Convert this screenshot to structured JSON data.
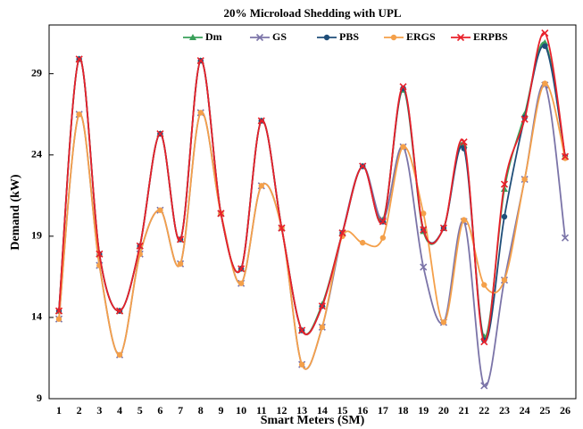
{
  "chart_data": {
    "type": "line",
    "title": "20% Microload Shedding with UPL",
    "x_label": "Smart Meters (SM)",
    "y_label": "Demand (kW)",
    "categories": [
      "1",
      "2",
      "3",
      "4",
      "5",
      "6",
      "7",
      "8",
      "9",
      "10",
      "11",
      "12",
      "13",
      "14",
      "15",
      "16",
      "17",
      "18",
      "19",
      "20",
      "21",
      "22",
      "23",
      "24",
      "25",
      "26"
    ],
    "ylim": [
      9,
      32
    ],
    "yticks": [
      9,
      14,
      19,
      24,
      29
    ],
    "series": [
      {
        "name": "Dm",
        "color": "#3aa05a",
        "marker": "triangle",
        "values": [
          14.4,
          29.9,
          17.9,
          14.4,
          18.4,
          25.3,
          18.8,
          29.8,
          20.4,
          17.0,
          26.1,
          19.5,
          13.2,
          14.8,
          19.2,
          23.3,
          20.0,
          28.0,
          19.3,
          19.5,
          24.6,
          12.8,
          21.9,
          26.5,
          30.9,
          23.9
        ]
      },
      {
        "name": "GS",
        "color": "#7b74a8",
        "marker": "x",
        "values": [
          13.9,
          26.5,
          17.2,
          11.7,
          17.9,
          20.6,
          17.3,
          26.6,
          20.4,
          16.1,
          22.1,
          19.5,
          11.1,
          13.4,
          19.2,
          23.3,
          20.0,
          24.5,
          17.1,
          13.7,
          19.9,
          9.8,
          16.3,
          22.5,
          28.3,
          18.9
        ]
      },
      {
        "name": "PBS",
        "color": "#1f4e79",
        "marker": "circle",
        "values": [
          14.4,
          29.9,
          17.9,
          14.4,
          18.4,
          25.3,
          18.8,
          29.8,
          20.4,
          17.0,
          26.1,
          19.5,
          13.2,
          14.7,
          19.2,
          23.3,
          19.9,
          28.1,
          19.4,
          19.5,
          24.4,
          12.6,
          20.2,
          26.3,
          30.7,
          23.9
        ]
      },
      {
        "name": "ERGS",
        "color": "#f4a04a",
        "marker": "circle",
        "values": [
          13.9,
          26.5,
          17.2,
          11.7,
          17.9,
          20.6,
          17.3,
          26.6,
          20.4,
          16.1,
          22.1,
          19.5,
          11.1,
          13.4,
          19.0,
          18.6,
          18.9,
          24.5,
          20.4,
          13.7,
          20.0,
          16.0,
          16.3,
          22.5,
          28.4,
          23.8
        ]
      },
      {
        "name": "ERPBS",
        "color": "#e8202a",
        "marker": "x",
        "values": [
          14.4,
          29.9,
          17.9,
          14.4,
          18.4,
          25.3,
          18.8,
          29.8,
          20.4,
          17.0,
          26.1,
          19.5,
          13.2,
          14.7,
          19.2,
          23.3,
          19.9,
          28.2,
          19.4,
          19.5,
          24.8,
          12.5,
          22.2,
          26.2,
          31.5,
          23.9
        ]
      }
    ]
  }
}
